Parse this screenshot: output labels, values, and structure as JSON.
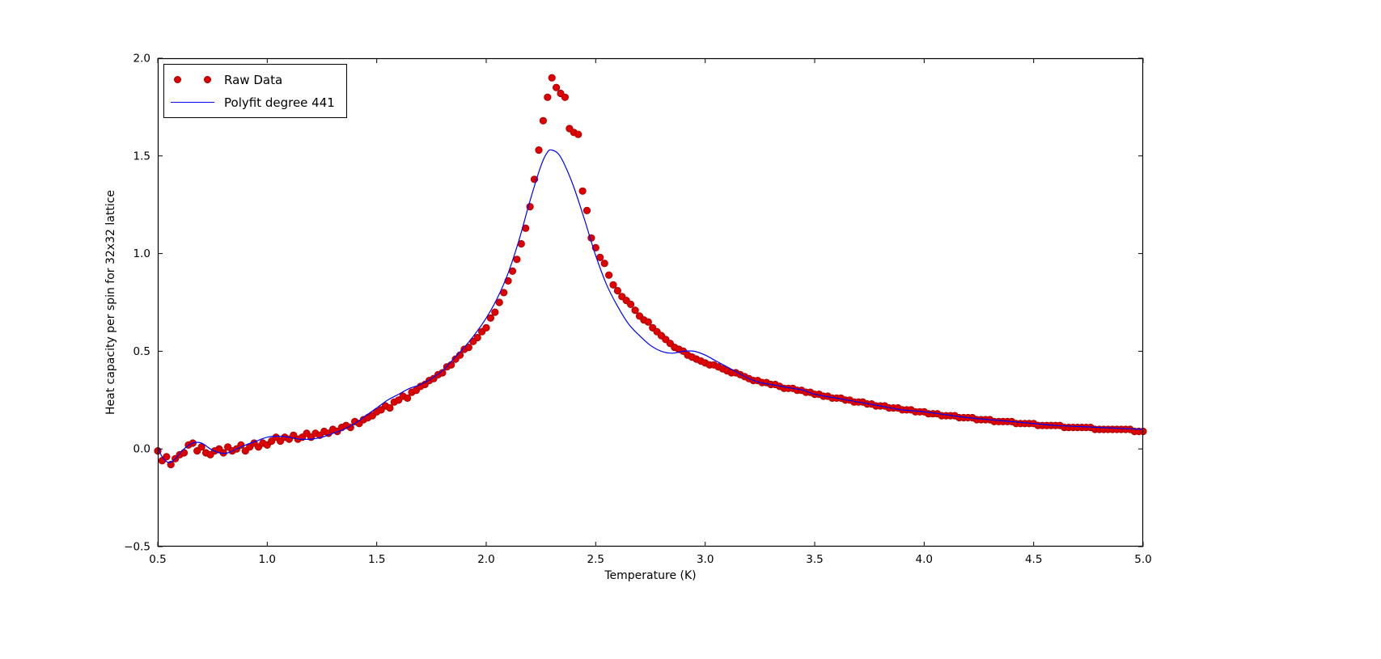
{
  "colors": {
    "raw": "#e00000",
    "raw_edge": "#a00000",
    "fit": "#0000ff",
    "frame": "#000000",
    "text": "#000000",
    "background": "#ffffff"
  },
  "chart_data": {
    "type": "scatter",
    "title": "",
    "xlabel": "Temperature (K)",
    "ylabel": "Heat capacity per spin for 32x32 lattice",
    "xlim": [
      0.5,
      5.0
    ],
    "ylim": [
      -0.5,
      2.0
    ],
    "grid": false,
    "x_ticks": [
      0.5,
      1.0,
      1.5,
      2.0,
      2.5,
      3.0,
      3.5,
      4.0,
      4.5,
      5.0
    ],
    "x_tick_labels": [
      "0.5",
      "1.0",
      "1.5",
      "2.0",
      "2.5",
      "3.0",
      "3.5",
      "4.0",
      "4.5",
      "5.0"
    ],
    "y_ticks": [
      -0.5,
      0.0,
      0.5,
      1.0,
      1.5,
      2.0
    ],
    "y_tick_labels": [
      "−0.5",
      "0.0",
      "0.5",
      "1.0",
      "1.5",
      "2.0"
    ],
    "legend": {
      "position": "upper-left",
      "entries": [
        {
          "label": "Raw Data",
          "type": "scatter",
          "color": "#e00000"
        },
        {
          "label": "Polyfit degree 441",
          "type": "line",
          "color": "#0000ff"
        }
      ]
    },
    "series": [
      {
        "name": "Raw Data",
        "type": "scatter",
        "color": "#e00000",
        "t_start": 0.5,
        "t_step": 0.02,
        "c": [
          -0.01,
          -0.06,
          -0.04,
          -0.08,
          -0.05,
          -0.03,
          -0.02,
          0.02,
          0.03,
          -0.01,
          0.01,
          -0.02,
          -0.03,
          -0.01,
          0.0,
          -0.02,
          0.01,
          -0.01,
          0.0,
          0.02,
          -0.01,
          0.01,
          0.03,
          0.01,
          0.03,
          0.02,
          0.04,
          0.06,
          0.04,
          0.06,
          0.05,
          0.07,
          0.05,
          0.06,
          0.08,
          0.06,
          0.08,
          0.07,
          0.09,
          0.08,
          0.1,
          0.09,
          0.11,
          0.12,
          0.11,
          0.14,
          0.13,
          0.15,
          0.16,
          0.17,
          0.19,
          0.2,
          0.22,
          0.21,
          0.24,
          0.25,
          0.27,
          0.26,
          0.29,
          0.3,
          0.32,
          0.33,
          0.35,
          0.36,
          0.38,
          0.39,
          0.42,
          0.43,
          0.46,
          0.48,
          0.51,
          0.52,
          0.55,
          0.57,
          0.6,
          0.62,
          0.67,
          0.7,
          0.75,
          0.8,
          0.86,
          0.91,
          0.97,
          1.05,
          1.13,
          1.24,
          1.38,
          1.53,
          1.68,
          1.8,
          1.9,
          1.85,
          1.82,
          1.8,
          1.64,
          1.62,
          1.61,
          1.32,
          1.22,
          1.08,
          1.03,
          0.98,
          0.95,
          0.89,
          0.84,
          0.81,
          0.78,
          0.76,
          0.74,
          0.71,
          0.68,
          0.66,
          0.65,
          0.62,
          0.6,
          0.58,
          0.56,
          0.54,
          0.52,
          0.51,
          0.5,
          0.48,
          0.47,
          0.46,
          0.45,
          0.44,
          0.43,
          0.43,
          0.42,
          0.41,
          0.4,
          0.39,
          0.39,
          0.38,
          0.37,
          0.36,
          0.35,
          0.35,
          0.34,
          0.34,
          0.33,
          0.33,
          0.32,
          0.31,
          0.31,
          0.31,
          0.3,
          0.3,
          0.29,
          0.29,
          0.28,
          0.28,
          0.27,
          0.27,
          0.26,
          0.26,
          0.26,
          0.25,
          0.25,
          0.24,
          0.24,
          0.24,
          0.23,
          0.23,
          0.22,
          0.22,
          0.22,
          0.21,
          0.21,
          0.21,
          0.2,
          0.2,
          0.2,
          0.19,
          0.19,
          0.19,
          0.18,
          0.18,
          0.18,
          0.17,
          0.17,
          0.17,
          0.17,
          0.16,
          0.16,
          0.16,
          0.16,
          0.15,
          0.15,
          0.15,
          0.15,
          0.14,
          0.14,
          0.14,
          0.14,
          0.14,
          0.13,
          0.13,
          0.13,
          0.13,
          0.13,
          0.12,
          0.12,
          0.12,
          0.12,
          0.12,
          0.12,
          0.11,
          0.11,
          0.11,
          0.11,
          0.11,
          0.11,
          0.11,
          0.1,
          0.1,
          0.1,
          0.1,
          0.1,
          0.1,
          0.1,
          0.1,
          0.1,
          0.09,
          0.09,
          0.09
        ]
      },
      {
        "name": "Polyfit degree 441",
        "type": "line",
        "color": "#0000ff",
        "points": [
          [
            0.5,
            0.01
          ],
          [
            0.52,
            -0.04
          ],
          [
            0.55,
            -0.07
          ],
          [
            0.58,
            -0.05
          ],
          [
            0.62,
            0.0
          ],
          [
            0.66,
            0.03
          ],
          [
            0.7,
            0.03
          ],
          [
            0.74,
            0.0
          ],
          [
            0.78,
            -0.02
          ],
          [
            0.82,
            -0.02
          ],
          [
            0.86,
            0.0
          ],
          [
            0.9,
            0.02
          ],
          [
            0.95,
            0.04
          ],
          [
            1.0,
            0.06
          ],
          [
            1.05,
            0.065
          ],
          [
            1.1,
            0.06
          ],
          [
            1.15,
            0.05
          ],
          [
            1.2,
            0.05
          ],
          [
            1.25,
            0.06
          ],
          [
            1.3,
            0.08
          ],
          [
            1.35,
            0.1
          ],
          [
            1.4,
            0.13
          ],
          [
            1.45,
            0.17
          ],
          [
            1.5,
            0.21
          ],
          [
            1.55,
            0.25
          ],
          [
            1.6,
            0.28
          ],
          [
            1.65,
            0.31
          ],
          [
            1.7,
            0.33
          ],
          [
            1.75,
            0.36
          ],
          [
            1.8,
            0.4
          ],
          [
            1.85,
            0.46
          ],
          [
            1.9,
            0.52
          ],
          [
            1.95,
            0.59
          ],
          [
            2.0,
            0.67
          ],
          [
            2.05,
            0.77
          ],
          [
            2.1,
            0.9
          ],
          [
            2.15,
            1.07
          ],
          [
            2.2,
            1.27
          ],
          [
            2.25,
            1.45
          ],
          [
            2.28,
            1.52
          ],
          [
            2.3,
            1.53
          ],
          [
            2.33,
            1.51
          ],
          [
            2.36,
            1.45
          ],
          [
            2.4,
            1.34
          ],
          [
            2.45,
            1.17
          ],
          [
            2.5,
            0.99
          ],
          [
            2.55,
            0.84
          ],
          [
            2.6,
            0.73
          ],
          [
            2.65,
            0.64
          ],
          [
            2.7,
            0.58
          ],
          [
            2.75,
            0.53
          ],
          [
            2.8,
            0.5
          ],
          [
            2.85,
            0.49
          ],
          [
            2.9,
            0.5
          ],
          [
            2.95,
            0.5
          ],
          [
            3.0,
            0.48
          ],
          [
            3.05,
            0.45
          ],
          [
            3.1,
            0.42
          ],
          [
            3.15,
            0.39
          ],
          [
            3.2,
            0.36
          ],
          [
            3.25,
            0.34
          ],
          [
            3.3,
            0.33
          ],
          [
            3.35,
            0.32
          ],
          [
            3.4,
            0.31
          ],
          [
            3.45,
            0.3
          ],
          [
            3.5,
            0.28
          ],
          [
            3.6,
            0.26
          ],
          [
            3.7,
            0.24
          ],
          [
            3.8,
            0.22
          ],
          [
            3.9,
            0.2
          ],
          [
            4.0,
            0.19
          ],
          [
            4.1,
            0.175
          ],
          [
            4.2,
            0.16
          ],
          [
            4.3,
            0.15
          ],
          [
            4.4,
            0.14
          ],
          [
            4.5,
            0.13
          ],
          [
            4.6,
            0.12
          ],
          [
            4.7,
            0.115
          ],
          [
            4.8,
            0.11
          ],
          [
            4.9,
            0.105
          ],
          [
            5.0,
            0.1
          ]
        ]
      }
    ]
  }
}
